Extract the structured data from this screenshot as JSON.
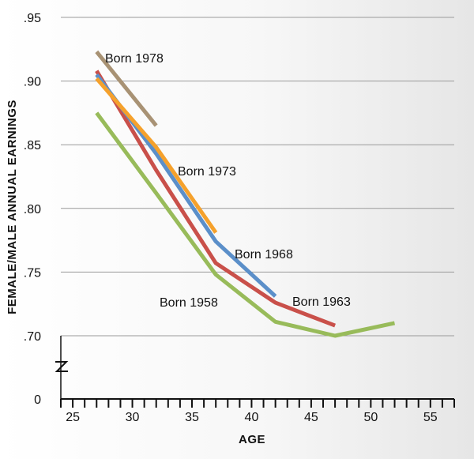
{
  "chart_data": {
    "type": "line",
    "xlabel": "AGE",
    "ylabel": "FEMALE/MALE ANNUAL EARNINGS",
    "xlim": [
      24,
      57
    ],
    "ylim": [
      0.7,
      0.95
    ],
    "x_ticks": [
      "25",
      "30",
      "35",
      "40",
      "45",
      "50",
      "55"
    ],
    "y_ticks": [
      ".95",
      ".90",
      ".85",
      ".80",
      ".75",
      ".70"
    ],
    "y_zero_label": "0",
    "axis_break": true,
    "grid": true,
    "series": [
      {
        "name": "Born 1978",
        "color": "#a89274",
        "x": [
          27,
          32
        ],
        "y": [
          0.923,
          0.865
        ]
      },
      {
        "name": "Born 1973",
        "color": "#f5a12c",
        "x": [
          27,
          32,
          37
        ],
        "y": [
          0.902,
          0.848,
          0.781
        ]
      },
      {
        "name": "Born 1968",
        "color": "#5b8fc9",
        "x": [
          27,
          32,
          37,
          42
        ],
        "y": [
          0.905,
          0.843,
          0.774,
          0.731
        ]
      },
      {
        "name": "Born 1963",
        "color": "#c9504a",
        "x": [
          27,
          32,
          37,
          42,
          47
        ],
        "y": [
          0.908,
          0.83,
          0.757,
          0.726,
          0.708
        ]
      },
      {
        "name": "Born 1958",
        "color": "#98bb5a",
        "x": [
          27,
          32,
          37,
          42,
          47,
          52
        ],
        "y": [
          0.875,
          0.812,
          0.748,
          0.711,
          0.7,
          0.71
        ]
      }
    ]
  }
}
